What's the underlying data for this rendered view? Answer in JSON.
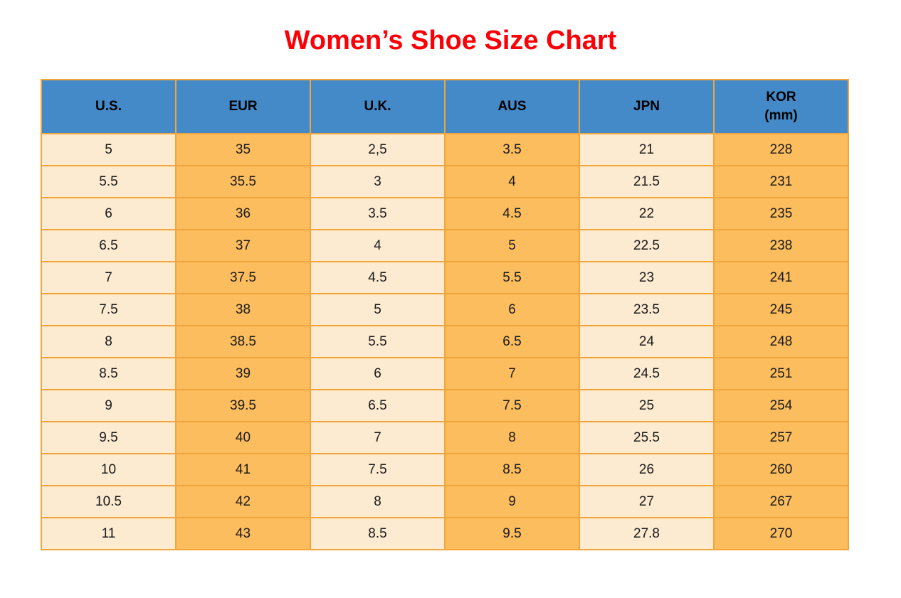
{
  "title": "Women’s Shoe Size Chart",
  "colors": {
    "title": "#fb0006",
    "header_bg": "#4489c8",
    "cell_cream": "#fcead1",
    "cell_orange": "#fcbd5f",
    "border": "#f2a53b"
  },
  "table": {
    "columns": [
      {
        "label": "U.S.",
        "sublabel": ""
      },
      {
        "label": "EUR",
        "sublabel": ""
      },
      {
        "label": "U.K.",
        "sublabel": ""
      },
      {
        "label": "AUS",
        "sublabel": ""
      },
      {
        "label": "JPN",
        "sublabel": ""
      },
      {
        "label": "KOR",
        "sublabel": "(mm)"
      }
    ],
    "rows": [
      [
        "5",
        "35",
        "2,5",
        "3.5",
        "21",
        "228"
      ],
      [
        "5.5",
        "35.5",
        "3",
        "4",
        "21.5",
        "231"
      ],
      [
        "6",
        "36",
        "3.5",
        "4.5",
        "22",
        "235"
      ],
      [
        "6.5",
        "37",
        "4",
        "5",
        "22.5",
        "238"
      ],
      [
        "7",
        "37.5",
        "4.5",
        "5.5",
        "23",
        "241"
      ],
      [
        "7.5",
        "38",
        "5",
        "6",
        "23.5",
        "245"
      ],
      [
        "8",
        "38.5",
        "5.5",
        "6.5",
        "24",
        "248"
      ],
      [
        "8.5",
        "39",
        "6",
        "7",
        "24.5",
        "251"
      ],
      [
        "9",
        "39.5",
        "6.5",
        "7.5",
        "25",
        "254"
      ],
      [
        "9.5",
        "40",
        "7",
        "8",
        "25.5",
        "257"
      ],
      [
        "10",
        "41",
        "7.5",
        "8.5",
        "26",
        "260"
      ],
      [
        "10.5",
        "42",
        "8",
        "9",
        "27",
        "267"
      ],
      [
        "11",
        "43",
        "8.5",
        "9.5",
        "27.8",
        "270"
      ]
    ]
  },
  "chart_data": {
    "type": "table",
    "title": "Women’s Shoe Size Chart",
    "columns": [
      "U.S.",
      "EUR",
      "U.K.",
      "AUS",
      "JPN",
      "KOR (mm)"
    ],
    "rows": [
      [
        "5",
        "35",
        "2,5",
        "3.5",
        "21",
        "228"
      ],
      [
        "5.5",
        "35.5",
        "3",
        "4",
        "21.5",
        "231"
      ],
      [
        "6",
        "36",
        "3.5",
        "4.5",
        "22",
        "235"
      ],
      [
        "6.5",
        "37",
        "4",
        "5",
        "22.5",
        "238"
      ],
      [
        "7",
        "37.5",
        "4.5",
        "5.5",
        "23",
        "241"
      ],
      [
        "7.5",
        "38",
        "5",
        "6",
        "23.5",
        "245"
      ],
      [
        "8",
        "38.5",
        "5.5",
        "6.5",
        "24",
        "248"
      ],
      [
        "8.5",
        "39",
        "6",
        "7",
        "24.5",
        "251"
      ],
      [
        "9",
        "39.5",
        "6.5",
        "7.5",
        "25",
        "254"
      ],
      [
        "9.5",
        "40",
        "7",
        "8",
        "25.5",
        "257"
      ],
      [
        "10",
        "41",
        "7.5",
        "8.5",
        "26",
        "260"
      ],
      [
        "10.5",
        "42",
        "8",
        "9",
        "27",
        "267"
      ],
      [
        "11",
        "43",
        "8.5",
        "9.5",
        "27.8",
        "270"
      ]
    ]
  }
}
